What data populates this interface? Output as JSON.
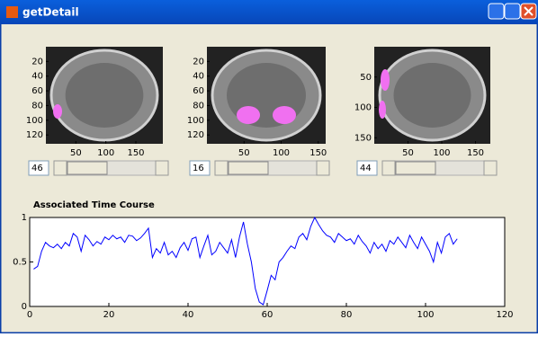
{
  "window": {
    "title": "getDetail"
  },
  "panels": [
    {
      "xlim": [
        0,
        195
      ],
      "ylim": [
        0,
        132
      ],
      "xticks": [
        50,
        100,
        150
      ],
      "yticks": [
        20,
        40,
        60,
        80,
        100,
        120
      ],
      "slider_value": "46"
    },
    {
      "xlim": [
        0,
        160
      ],
      "ylim": [
        0,
        132
      ],
      "xticks": [
        50,
        100,
        150
      ],
      "yticks": [
        20,
        40,
        60,
        80,
        100,
        120
      ],
      "slider_value": "16"
    },
    {
      "xlim": [
        0,
        172
      ],
      "ylim": [
        0,
        160
      ],
      "xticks": [
        50,
        100,
        150
      ],
      "yticks": [
        50,
        100,
        150
      ],
      "slider_value": "44"
    }
  ],
  "chart_data": {
    "type": "line",
    "title": "Associated Time Course",
    "color": "#0000ff",
    "x": [
      1,
      2,
      3,
      4,
      5,
      6,
      7,
      8,
      9,
      10,
      11,
      12,
      13,
      14,
      15,
      16,
      17,
      18,
      19,
      20,
      21,
      22,
      23,
      24,
      25,
      26,
      27,
      28,
      29,
      30,
      31,
      32,
      33,
      34,
      35,
      36,
      37,
      38,
      39,
      40,
      41,
      42,
      43,
      44,
      45,
      46,
      47,
      48,
      49,
      50,
      51,
      52,
      53,
      54,
      55,
      56,
      57,
      58,
      59,
      60,
      61,
      62,
      63,
      64,
      65,
      66,
      67,
      68,
      69,
      70,
      71,
      72,
      73,
      74,
      75,
      76,
      77,
      78,
      79,
      80,
      81,
      82,
      83,
      84,
      85,
      86,
      87,
      88,
      89,
      90,
      91,
      92,
      93,
      94,
      95,
      96,
      97,
      98,
      99,
      100,
      101,
      102,
      103,
      104,
      105,
      106,
      107,
      108
    ],
    "values": [
      0.42,
      0.45,
      0.62,
      0.72,
      0.68,
      0.66,
      0.7,
      0.65,
      0.72,
      0.68,
      0.82,
      0.78,
      0.62,
      0.8,
      0.75,
      0.68,
      0.73,
      0.7,
      0.78,
      0.75,
      0.8,
      0.76,
      0.78,
      0.72,
      0.8,
      0.79,
      0.74,
      0.77,
      0.82,
      0.88,
      0.55,
      0.65,
      0.6,
      0.72,
      0.58,
      0.62,
      0.55,
      0.66,
      0.72,
      0.63,
      0.76,
      0.78,
      0.55,
      0.68,
      0.8,
      0.58,
      0.62,
      0.72,
      0.66,
      0.6,
      0.75,
      0.55,
      0.78,
      0.95,
      0.7,
      0.5,
      0.2,
      0.05,
      0.02,
      0.18,
      0.35,
      0.3,
      0.5,
      0.55,
      0.62,
      0.68,
      0.65,
      0.78,
      0.82,
      0.75,
      0.9,
      1,
      0.92,
      0.85,
      0.8,
      0.78,
      0.72,
      0.82,
      0.78,
      0.74,
      0.76,
      0.7,
      0.8,
      0.73,
      0.68,
      0.6,
      0.72,
      0.65,
      0.7,
      0.62,
      0.74,
      0.7,
      0.78,
      0.72,
      0.66,
      0.8,
      0.72,
      0.65,
      0.78,
      0.7,
      0.62,
      0.5,
      0.72,
      0.6,
      0.78,
      0.82,
      0.7,
      0.76
    ],
    "xlim": [
      0,
      120
    ],
    "ylim": [
      0,
      1
    ],
    "xticks": [
      0,
      20,
      40,
      60,
      80,
      100,
      120
    ],
    "yticks": [
      0,
      0.5,
      1
    ]
  }
}
